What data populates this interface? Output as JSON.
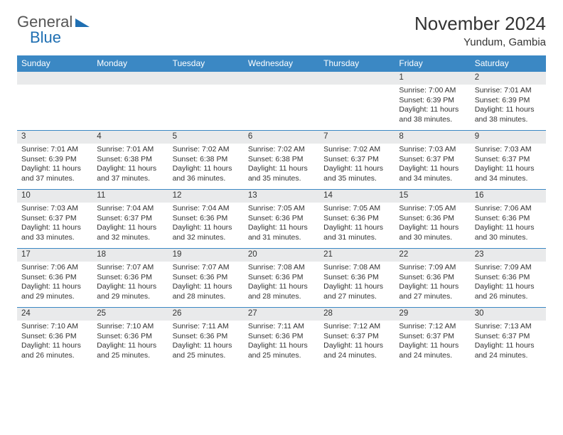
{
  "brand": {
    "part1": "General",
    "part2": "Blue"
  },
  "title": "November 2024",
  "location": "Yundum, Gambia",
  "colors": {
    "header_bg": "#3b88c4",
    "daynum_bg": "#e9eaeb",
    "week_border": "#3b88c4",
    "logo_gray": "#555555",
    "logo_blue": "#1f6fb2"
  },
  "day_headers": [
    "Sunday",
    "Monday",
    "Tuesday",
    "Wednesday",
    "Thursday",
    "Friday",
    "Saturday"
  ],
  "weeks": [
    [
      {
        "n": "",
        "sr": "",
        "ss": "",
        "dl": ""
      },
      {
        "n": "",
        "sr": "",
        "ss": "",
        "dl": ""
      },
      {
        "n": "",
        "sr": "",
        "ss": "",
        "dl": ""
      },
      {
        "n": "",
        "sr": "",
        "ss": "",
        "dl": ""
      },
      {
        "n": "",
        "sr": "",
        "ss": "",
        "dl": ""
      },
      {
        "n": "1",
        "sr": "Sunrise: 7:00 AM",
        "ss": "Sunset: 6:39 PM",
        "dl": "Daylight: 11 hours and 38 minutes."
      },
      {
        "n": "2",
        "sr": "Sunrise: 7:01 AM",
        "ss": "Sunset: 6:39 PM",
        "dl": "Daylight: 11 hours and 38 minutes."
      }
    ],
    [
      {
        "n": "3",
        "sr": "Sunrise: 7:01 AM",
        "ss": "Sunset: 6:39 PM",
        "dl": "Daylight: 11 hours and 37 minutes."
      },
      {
        "n": "4",
        "sr": "Sunrise: 7:01 AM",
        "ss": "Sunset: 6:38 PM",
        "dl": "Daylight: 11 hours and 37 minutes."
      },
      {
        "n": "5",
        "sr": "Sunrise: 7:02 AM",
        "ss": "Sunset: 6:38 PM",
        "dl": "Daylight: 11 hours and 36 minutes."
      },
      {
        "n": "6",
        "sr": "Sunrise: 7:02 AM",
        "ss": "Sunset: 6:38 PM",
        "dl": "Daylight: 11 hours and 35 minutes."
      },
      {
        "n": "7",
        "sr": "Sunrise: 7:02 AM",
        "ss": "Sunset: 6:37 PM",
        "dl": "Daylight: 11 hours and 35 minutes."
      },
      {
        "n": "8",
        "sr": "Sunrise: 7:03 AM",
        "ss": "Sunset: 6:37 PM",
        "dl": "Daylight: 11 hours and 34 minutes."
      },
      {
        "n": "9",
        "sr": "Sunrise: 7:03 AM",
        "ss": "Sunset: 6:37 PM",
        "dl": "Daylight: 11 hours and 34 minutes."
      }
    ],
    [
      {
        "n": "10",
        "sr": "Sunrise: 7:03 AM",
        "ss": "Sunset: 6:37 PM",
        "dl": "Daylight: 11 hours and 33 minutes."
      },
      {
        "n": "11",
        "sr": "Sunrise: 7:04 AM",
        "ss": "Sunset: 6:37 PM",
        "dl": "Daylight: 11 hours and 32 minutes."
      },
      {
        "n": "12",
        "sr": "Sunrise: 7:04 AM",
        "ss": "Sunset: 6:36 PM",
        "dl": "Daylight: 11 hours and 32 minutes."
      },
      {
        "n": "13",
        "sr": "Sunrise: 7:05 AM",
        "ss": "Sunset: 6:36 PM",
        "dl": "Daylight: 11 hours and 31 minutes."
      },
      {
        "n": "14",
        "sr": "Sunrise: 7:05 AM",
        "ss": "Sunset: 6:36 PM",
        "dl": "Daylight: 11 hours and 31 minutes."
      },
      {
        "n": "15",
        "sr": "Sunrise: 7:05 AM",
        "ss": "Sunset: 6:36 PM",
        "dl": "Daylight: 11 hours and 30 minutes."
      },
      {
        "n": "16",
        "sr": "Sunrise: 7:06 AM",
        "ss": "Sunset: 6:36 PM",
        "dl": "Daylight: 11 hours and 30 minutes."
      }
    ],
    [
      {
        "n": "17",
        "sr": "Sunrise: 7:06 AM",
        "ss": "Sunset: 6:36 PM",
        "dl": "Daylight: 11 hours and 29 minutes."
      },
      {
        "n": "18",
        "sr": "Sunrise: 7:07 AM",
        "ss": "Sunset: 6:36 PM",
        "dl": "Daylight: 11 hours and 29 minutes."
      },
      {
        "n": "19",
        "sr": "Sunrise: 7:07 AM",
        "ss": "Sunset: 6:36 PM",
        "dl": "Daylight: 11 hours and 28 minutes."
      },
      {
        "n": "20",
        "sr": "Sunrise: 7:08 AM",
        "ss": "Sunset: 6:36 PM",
        "dl": "Daylight: 11 hours and 28 minutes."
      },
      {
        "n": "21",
        "sr": "Sunrise: 7:08 AM",
        "ss": "Sunset: 6:36 PM",
        "dl": "Daylight: 11 hours and 27 minutes."
      },
      {
        "n": "22",
        "sr": "Sunrise: 7:09 AM",
        "ss": "Sunset: 6:36 PM",
        "dl": "Daylight: 11 hours and 27 minutes."
      },
      {
        "n": "23",
        "sr": "Sunrise: 7:09 AM",
        "ss": "Sunset: 6:36 PM",
        "dl": "Daylight: 11 hours and 26 minutes."
      }
    ],
    [
      {
        "n": "24",
        "sr": "Sunrise: 7:10 AM",
        "ss": "Sunset: 6:36 PM",
        "dl": "Daylight: 11 hours and 26 minutes."
      },
      {
        "n": "25",
        "sr": "Sunrise: 7:10 AM",
        "ss": "Sunset: 6:36 PM",
        "dl": "Daylight: 11 hours and 25 minutes."
      },
      {
        "n": "26",
        "sr": "Sunrise: 7:11 AM",
        "ss": "Sunset: 6:36 PM",
        "dl": "Daylight: 11 hours and 25 minutes."
      },
      {
        "n": "27",
        "sr": "Sunrise: 7:11 AM",
        "ss": "Sunset: 6:36 PM",
        "dl": "Daylight: 11 hours and 25 minutes."
      },
      {
        "n": "28",
        "sr": "Sunrise: 7:12 AM",
        "ss": "Sunset: 6:37 PM",
        "dl": "Daylight: 11 hours and 24 minutes."
      },
      {
        "n": "29",
        "sr": "Sunrise: 7:12 AM",
        "ss": "Sunset: 6:37 PM",
        "dl": "Daylight: 11 hours and 24 minutes."
      },
      {
        "n": "30",
        "sr": "Sunrise: 7:13 AM",
        "ss": "Sunset: 6:37 PM",
        "dl": "Daylight: 11 hours and 24 minutes."
      }
    ]
  ]
}
